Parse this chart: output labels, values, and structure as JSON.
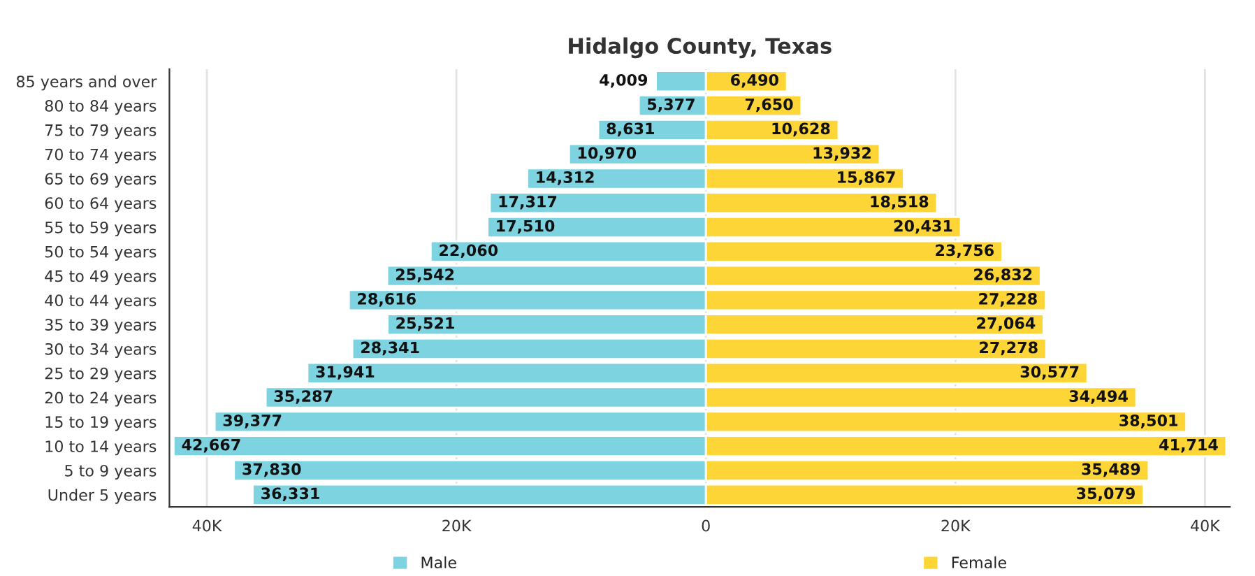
{
  "chart_data": {
    "type": "bar",
    "orientation": "horizontal",
    "title": "Hidalgo County, Texas",
    "categories": [
      "85 years and over",
      "80 to 84 years",
      "75 to 79 years",
      "70 to 74 years",
      "65 to 69 years",
      "60 to 64 years",
      "55 to 59 years",
      "50 to 54 years",
      "45 to 49 years",
      "40 to 44 years",
      "35 to 39 years",
      "30 to 34 years",
      "25 to 29 years",
      "20 to 24 years",
      "15 to 19 years",
      "10 to 14 years",
      "5 to 9 years",
      "Under 5 years"
    ],
    "series": [
      {
        "name": "Male",
        "color": "#7dd3e0",
        "values": [
          4009,
          5377,
          8631,
          10970,
          14312,
          17317,
          17510,
          22060,
          25542,
          28616,
          25521,
          28341,
          31941,
          35287,
          39377,
          42667,
          37830,
          36331
        ],
        "base": [
          -4009,
          -5377,
          -8631,
          -10970,
          -14312,
          -17317,
          -17510,
          -22060,
          -25542,
          -28616,
          -25521,
          -28341,
          -31941,
          -35287,
          -39377,
          -42667,
          -37830,
          -36331
        ],
        "value_labels": [
          "4,009",
          "5,377",
          "8,631",
          "10,970",
          "14,312",
          "17,317",
          "17,510",
          "22,060",
          "25,542",
          "28,616",
          "25,521",
          "28,341",
          "31,941",
          "35,287",
          "39,377",
          "42,667",
          "37,830",
          "36,331"
        ]
      },
      {
        "name": "Female",
        "color": "#fdd536",
        "values": [
          6490,
          7650,
          10628,
          13932,
          15867,
          18518,
          20431,
          23756,
          26832,
          27228,
          27064,
          27278,
          30577,
          34494,
          38501,
          41714,
          35489,
          35079
        ],
        "value_labels": [
          "6,490",
          "7,650",
          "10,628",
          "13,932",
          "15,867",
          "18,518",
          "20,431",
          "23,756",
          "26,832",
          "27,228",
          "27,064",
          "27,278",
          "30,577",
          "34,494",
          "38,501",
          "41,714",
          "35,489",
          "35,079"
        ]
      }
    ],
    "xlim": [
      -43000,
      42000
    ],
    "xticks": [
      {
        "value": -40000,
        "label": "40K"
      },
      {
        "value": -20000,
        "label": "20K"
      },
      0,
      {
        "value": 20000,
        "label": "20K"
      },
      {
        "value": 40000,
        "label": "40K"
      }
    ],
    "grid": "x",
    "legend": "bottom"
  }
}
